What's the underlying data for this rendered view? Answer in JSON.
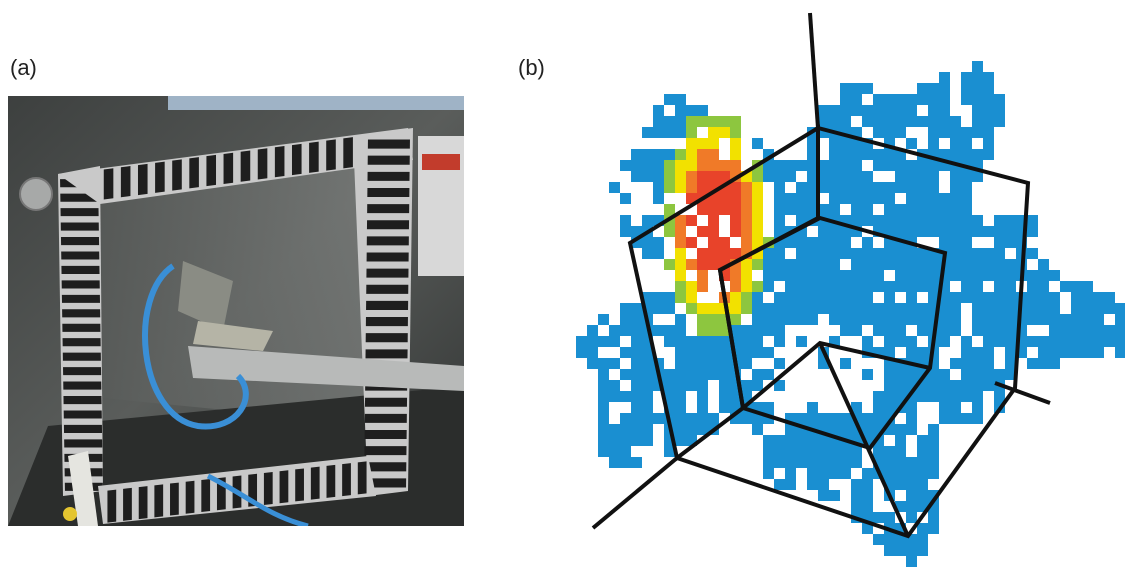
{
  "figure": {
    "panel_a_label": "(a)",
    "panel_b_label": "(b)"
  },
  "colors": {
    "background": "#ffffff",
    "heat_low": "#1a8fd1",
    "heat_mid": "#8dc63f",
    "heat_mid_high": "#f2e100",
    "heat_high": "#f07a28",
    "heat_peak": "#e8432a",
    "wireframe": "#111111",
    "fabric_dark": "#4a4d4c",
    "fabric_light": "#6b6e6c",
    "stripe_light": "#c9c9c9",
    "stripe_dark": "#1e1e1e",
    "cable_blue": "#3a8fd6"
  },
  "icons": {
    "photo": "test-rig-photo",
    "map": "acoustic-heat-map"
  }
}
